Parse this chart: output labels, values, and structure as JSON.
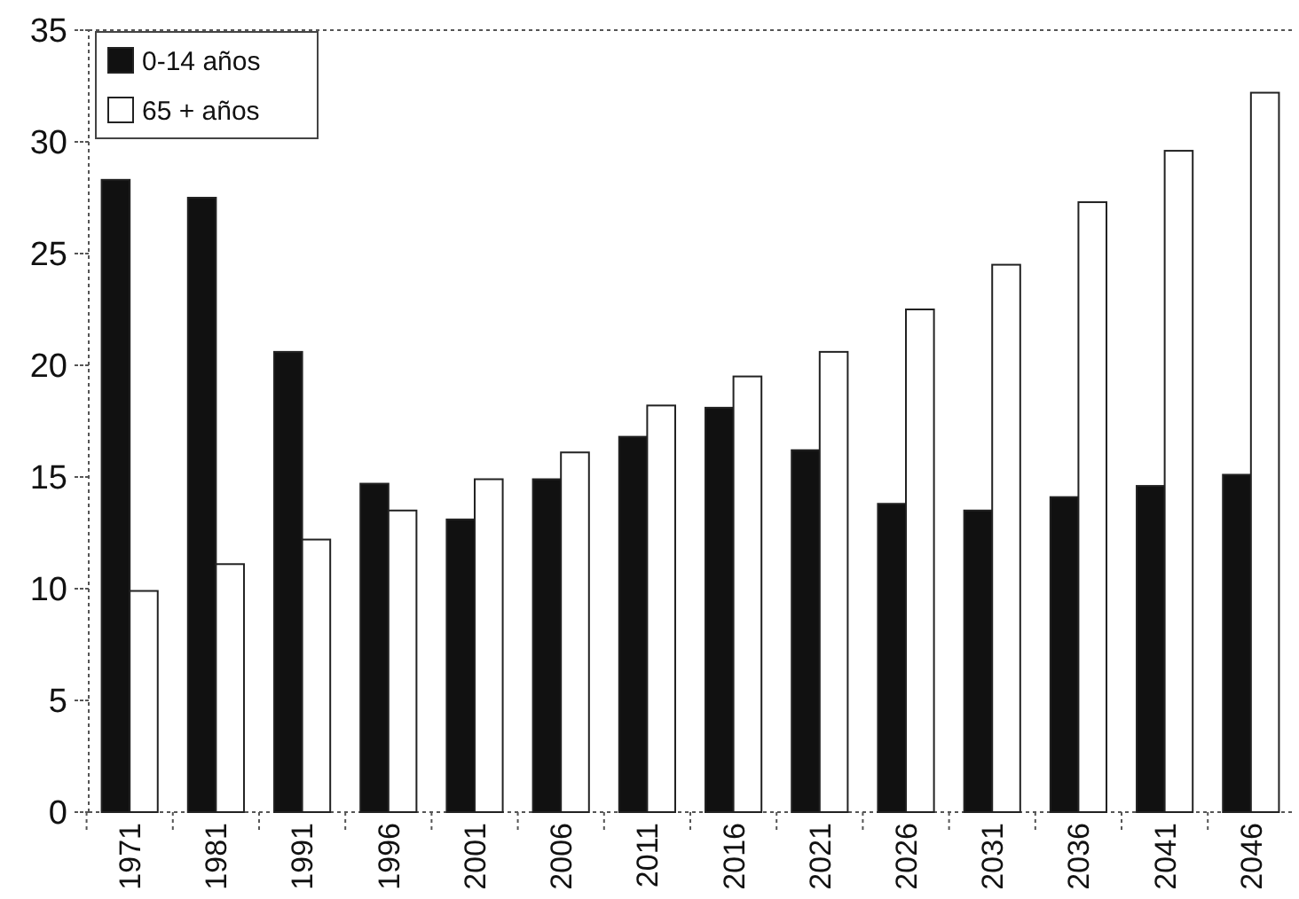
{
  "chart_data": {
    "type": "bar",
    "categories": [
      "1971",
      "1981",
      "1991",
      "1996",
      "2001",
      "2006",
      "2011",
      "2016",
      "2021",
      "2026",
      "2031",
      "2036",
      "2041",
      "2046"
    ],
    "series": [
      {
        "name": "0-14 años",
        "color": "#111111",
        "values": [
          28.3,
          27.5,
          20.6,
          14.7,
          13.1,
          14.9,
          16.8,
          18.1,
          16.2,
          13.8,
          13.5,
          14.1,
          14.6,
          15.1
        ]
      },
      {
        "name": "65 + años",
        "color": "#ffffff",
        "values": [
          9.9,
          11.1,
          12.2,
          13.5,
          14.9,
          16.1,
          18.2,
          19.5,
          20.6,
          22.5,
          24.5,
          27.3,
          29.6,
          32.2
        ]
      }
    ],
    "ylim": [
      0,
      35
    ],
    "yticks": [
      0,
      5,
      10,
      15,
      20,
      25,
      30,
      35
    ],
    "legend": "top left"
  }
}
